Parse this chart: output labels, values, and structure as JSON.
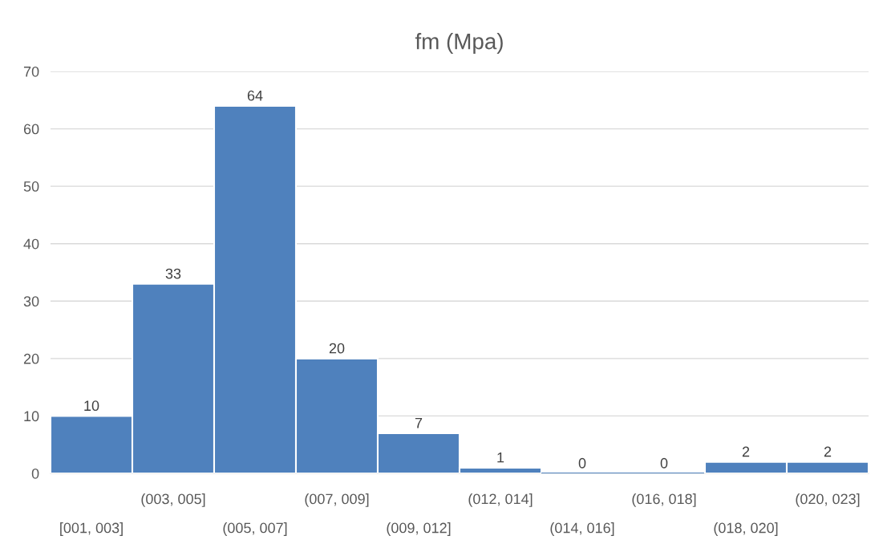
{
  "chart_data": {
    "type": "bar",
    "title": "fm (Mpa)",
    "categories": [
      "[001, 003]",
      "(003, 005]",
      "(005, 007]",
      "(007, 009]",
      "(009, 012]",
      "(012, 014]",
      "(014, 016]",
      "(016, 018]",
      "(018, 020]",
      "(020, 023]"
    ],
    "values": [
      10,
      33,
      64,
      20,
      7,
      1,
      0,
      0,
      2,
      2
    ],
    "color": "#4f81bd",
    "ylim": [
      0,
      70
    ],
    "yticks": [
      0,
      10,
      20,
      30,
      40,
      50,
      60,
      70
    ],
    "grid": "y",
    "data_labels": true
  }
}
